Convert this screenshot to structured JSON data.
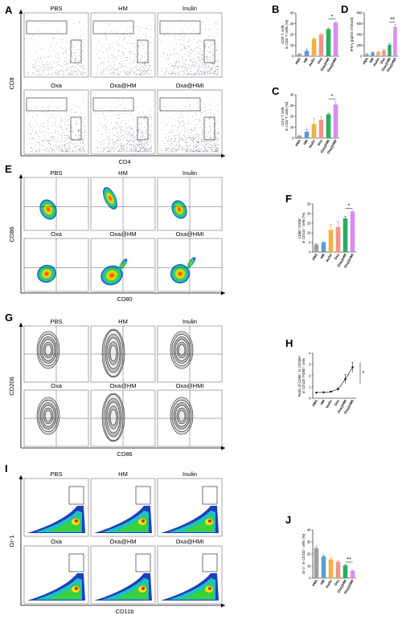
{
  "panels": {
    "A": {
      "label": "A",
      "titles": [
        "PBS",
        "HM",
        "Inulin",
        "Oxa",
        "Oxa@HM",
        "Oxa@HMI"
      ],
      "xlabel": "CD4",
      "ylabel": "CD8"
    },
    "E": {
      "label": "E",
      "titles": [
        "PBS",
        "HM",
        "Inulin",
        "Oxa",
        "Oxa@HM",
        "Oxa@HMI"
      ],
      "xlabel": "CD80",
      "ylabel": "CD86"
    },
    "G": {
      "label": "G",
      "titles": [
        "PBS",
        "HM",
        "Inulin",
        "Oxa",
        "Oxa@HM",
        "Oxa@HMI"
      ],
      "xlabel": "CD86",
      "ylabel": "CD206"
    },
    "I": {
      "label": "I",
      "titles": [
        "PBS",
        "HM",
        "Inulin",
        "Oxa",
        "Oxa@HM",
        "Oxa@HMI"
      ],
      "xlabel": "CD11b",
      "ylabel": "Gr-1"
    }
  },
  "colors": {
    "bars": [
      "#9e9e9e",
      "#5b9bd5",
      "#f5b041",
      "#f1948a",
      "#27ae60",
      "#d98cf0"
    ],
    "density": [
      "#1f3fbf",
      "#1ec1c1",
      "#3ad13a",
      "#f2e40f",
      "#ff8a00",
      "#e4261b"
    ]
  },
  "chart_data": [
    {
      "panel": "B",
      "type": "bar",
      "categories": [
        "PBS",
        "HM",
        "Inulin",
        "Oxa",
        "Oxa@HM",
        "Oxa@HMI"
      ],
      "values": [
        2,
        5,
        16,
        20,
        25,
        31
      ],
      "errors": [
        0.5,
        1.5,
        1.2,
        1,
        1,
        1
      ],
      "ylabel": "CD8⁺T cells\nin CD3⁺T cells (%)",
      "ylim": [
        0,
        40
      ],
      "yticks": [
        0,
        10,
        20,
        30,
        40
      ],
      "significance": "*"
    },
    {
      "panel": "C",
      "type": "bar",
      "categories": [
        "PBS",
        "HM",
        "Inulin",
        "Oxa",
        "Oxa@HM",
        "Oxa@HMI"
      ],
      "values": [
        2,
        6,
        13,
        17,
        22,
        31
      ],
      "errors": [
        0.5,
        2,
        5,
        3,
        1,
        3
      ],
      "ylabel": "CD4⁺T cells\nin CD3⁺T cells (%)",
      "ylim": [
        0,
        40
      ],
      "yticks": [
        0,
        10,
        20,
        30,
        40
      ],
      "significance": "*"
    },
    {
      "panel": "D",
      "type": "bar",
      "categories": [
        "PBS",
        "HM",
        "Inulin",
        "Oxa",
        "Oxa@HM",
        "Oxa@HMI"
      ],
      "values": [
        40,
        70,
        80,
        110,
        210,
        540
      ],
      "errors": [
        10,
        10,
        10,
        15,
        25,
        45
      ],
      "ylabel": "IFN-γ (pg/ml of blood)",
      "ylim": [
        0,
        800
      ],
      "yticks": [
        0,
        200,
        400,
        600,
        800
      ],
      "significance": "**"
    },
    {
      "panel": "F",
      "type": "bar",
      "categories": [
        "PBS",
        "HM",
        "Inulin",
        "Oxa",
        "Oxa@HM",
        "Oxa@HMI"
      ],
      "values": [
        4,
        5,
        11.5,
        13,
        17.5,
        21
      ],
      "errors": [
        0.3,
        0.3,
        3,
        3,
        1,
        0.5
      ],
      "ylabel": "CD80⁺CD86⁺\nin CD11c⁺ cells (%)",
      "ylim": [
        0,
        25
      ],
      "yticks": [
        0,
        5,
        10,
        15,
        20,
        25
      ],
      "significance": "*"
    },
    {
      "panel": "H",
      "type": "line",
      "categories": [
        "PBS",
        "HM",
        "Inulin",
        "Oxa",
        "Oxa@HM",
        "Oxa@HMI"
      ],
      "values": [
        0.5,
        0.52,
        0.58,
        0.8,
        1.7,
        2.75
      ],
      "errors": [
        0.02,
        0.02,
        0.04,
        0.1,
        0.4,
        0.45
      ],
      "ylabel": "Ratio of CD86⁺ to CD206⁺\nin CD11b⁺F4/80⁺ cells",
      "ylim": [
        0,
        4
      ],
      "yticks": [
        0,
        1,
        2,
        3,
        4
      ],
      "significance": "*"
    },
    {
      "panel": "J",
      "type": "bar",
      "categories": [
        "PBS",
        "HM",
        "Inulin",
        "Oxa",
        "Oxa@HM",
        "Oxa@HMI"
      ],
      "values": [
        25,
        18,
        15.5,
        13.5,
        10.5,
        6
      ],
      "errors": [
        1.5,
        1.2,
        1,
        0.8,
        0.8,
        0.6
      ],
      "ylabel": "Gr-1⁺ in CD11b⁺ cells (%)",
      "ylim": [
        0,
        40
      ],
      "yticks": [
        0,
        10,
        20,
        30,
        40
      ],
      "significance": "**"
    }
  ]
}
